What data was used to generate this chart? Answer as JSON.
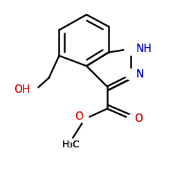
{
  "background": "#ffffff",
  "lw": 1.8,
  "figsize": [
    2.5,
    2.5
  ],
  "dpi": 100,
  "N_color": "#0000dd",
  "O_color": "#dd0000",
  "bond_color": "#000000",
  "label_NH": "NH",
  "label_N": "N",
  "label_OH_left": "OH",
  "label_O_methoxy": "O",
  "label_O_carbonyl": "O",
  "label_methyl": "H₃C"
}
